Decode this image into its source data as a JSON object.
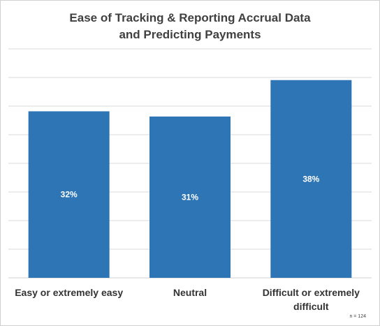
{
  "chart_data": {
    "type": "bar",
    "title_lines": [
      "Ease of Tracking & Reporting Accrual Data",
      "and Predicting Payments"
    ],
    "categories": [
      [
        "Easy or extremely easy"
      ],
      [
        "Neutral"
      ],
      [
        "Difficult or extremely",
        "difficult"
      ]
    ],
    "values": [
      32,
      31,
      38
    ],
    "data_labels": [
      "32%",
      "31%",
      "38%"
    ],
    "ylim": [
      0,
      44
    ],
    "grid": true,
    "bar_color": "#2e75b6",
    "grid_color": "#d9d9d9"
  },
  "footnote": "n = 124"
}
